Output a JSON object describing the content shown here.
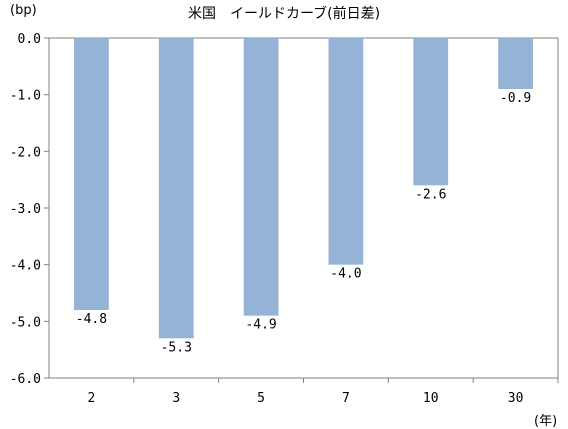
{
  "title": "米国　イールドカーブ(前日差)",
  "y_unit": "(bp)",
  "x_unit": "(年)",
  "chart_data": {
    "type": "bar",
    "title": "米国　イールドカーブ(前日差)",
    "categories": [
      "2",
      "3",
      "5",
      "7",
      "10",
      "30"
    ],
    "values": [
      -4.8,
      -5.3,
      -4.9,
      -4.0,
      -2.6,
      -0.9
    ],
    "data_labels": [
      "-4.8",
      "-5.3",
      "-4.9",
      "-4.0",
      "-2.6",
      "-0.9"
    ],
    "ylabel": "(bp)",
    "xlabel": "(年)",
    "ylim": [
      -6.0,
      0.0
    ],
    "yticks": [
      "0.0",
      "-1.0",
      "-2.0",
      "-3.0",
      "-4.0",
      "-5.0",
      "-6.0"
    ],
    "ytick_values": [
      0,
      -1,
      -2,
      -3,
      -4,
      -5,
      -6
    ],
    "grid": false,
    "bar_color": "#95B3D7"
  }
}
